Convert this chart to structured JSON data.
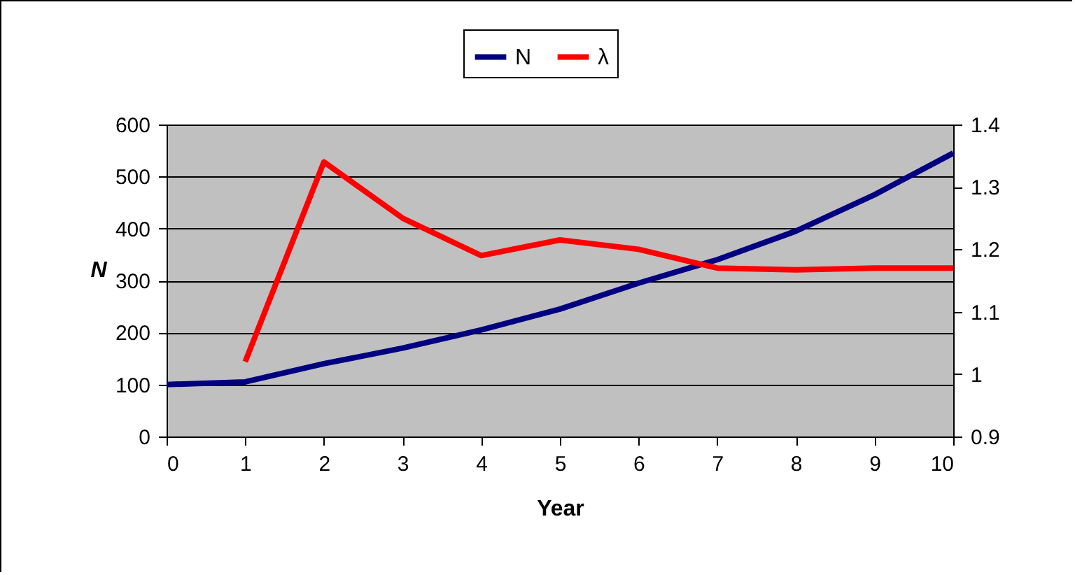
{
  "chart_data": {
    "type": "line",
    "xlabel": "Year",
    "ylabel": "N",
    "x": [
      0,
      1,
      2,
      3,
      4,
      5,
      6,
      7,
      8,
      9,
      10
    ],
    "series": [
      {
        "name": "N",
        "color": "#000080",
        "values": [
          100,
          105,
          140,
          170,
          205,
          245,
          295,
          340,
          395,
          465,
          545
        ]
      },
      {
        "name": "λ",
        "color": "#ff0000",
        "axis": "y2",
        "values": [
          null,
          1.02,
          1.34,
          1.25,
          1.19,
          1.215,
          1.2,
          1.17,
          1.167,
          1.17,
          1.17
        ]
      }
    ],
    "xlim": [
      0,
      10
    ],
    "xticks": [
      0,
      1,
      2,
      3,
      4,
      5,
      6,
      7,
      8,
      9,
      10
    ],
    "ylim": [
      0,
      600
    ],
    "yticks": [
      0,
      100,
      200,
      300,
      400,
      500,
      600
    ],
    "y2lim": [
      0.9,
      1.4
    ],
    "y2ticks": [
      0.9,
      1,
      1.1,
      1.2,
      1.3,
      1.4
    ],
    "grid": "y",
    "legend": "top",
    "marker": "none",
    "line_style": "solid"
  }
}
